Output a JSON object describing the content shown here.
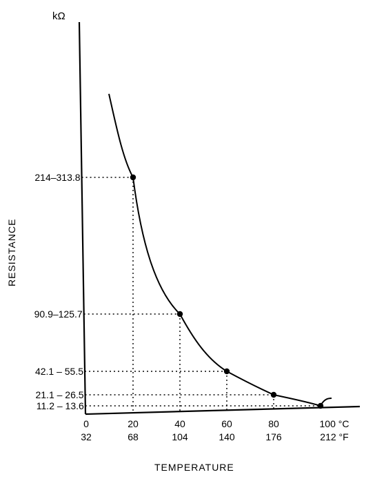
{
  "chart_data": {
    "type": "line",
    "y_unit_label": "kΩ",
    "xlabel": "TEMPERATURE",
    "ylabel": "RESISTANCE",
    "x_ticks_celsius": [
      "0",
      "20",
      "40",
      "60",
      "80",
      "100 °C"
    ],
    "x_ticks_fahrenheit": [
      "32",
      "68",
      "104",
      "140",
      "176",
      "212 °F"
    ],
    "y_ticks": [
      "214–313.8",
      "90.9–125.7",
      "42.1 – 55.5",
      "21.1 – 26.5",
      "11.2 – 13.6"
    ],
    "points": [
      {
        "x": 20,
        "y_label": "214–313.8"
      },
      {
        "x": 40,
        "y_label": "90.9–125.7"
      },
      {
        "x": 60,
        "y_label": "42.1 – 55.5"
      },
      {
        "x": 80,
        "y_label": "21.1 – 26.5"
      },
      {
        "x": 100,
        "y_label": "11.2 – 13.6"
      }
    ],
    "grid": false,
    "legend": "none"
  }
}
